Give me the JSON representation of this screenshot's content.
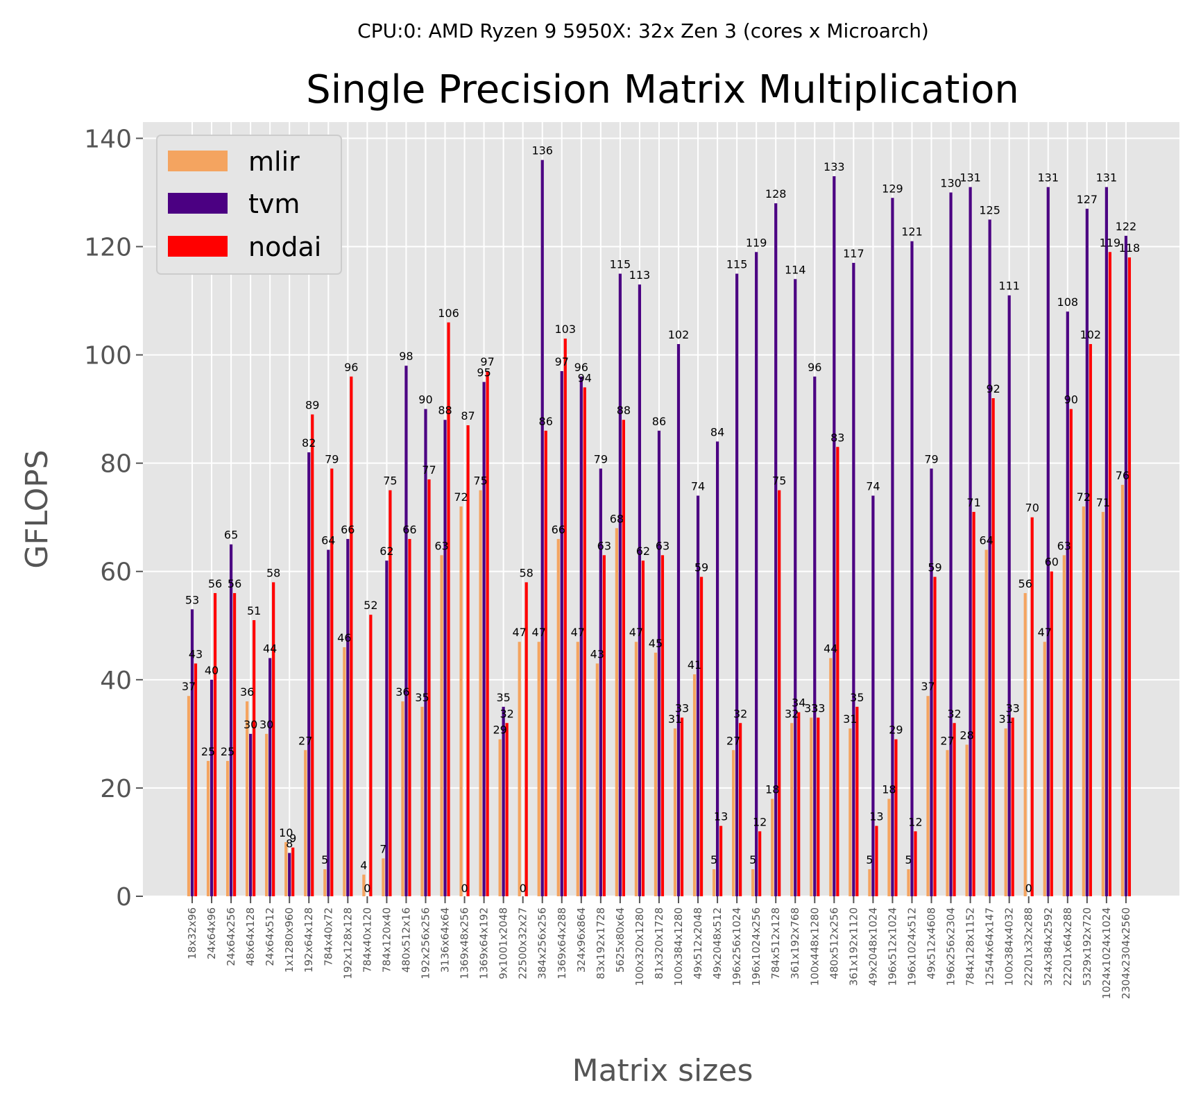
{
  "suptitle": "CPU:0: AMD Ryzen 9 5950X: 32x Zen 3 (cores x Microarch)",
  "chart_data": {
    "type": "bar",
    "title": "Single Precision Matrix Multiplication",
    "xlabel": "Matrix sizes",
    "ylabel": "GFLOPS",
    "ylim": [
      0,
      143
    ],
    "yticks": [
      0,
      20,
      40,
      60,
      80,
      100,
      120,
      140
    ],
    "grid": true,
    "legend_position": "top-left",
    "categories": [
      "18x32x96",
      "24x64x96",
      "24x64x256",
      "48x64x128",
      "24x64x512",
      "1x1280x960",
      "192x64x128",
      "784x40x72",
      "192x128x128",
      "784x40x120",
      "784x120x40",
      "480x512x16",
      "192x256x256",
      "3136x64x64",
      "1369x48x256",
      "1369x64x192",
      "9x1001x2048",
      "22500x32x27",
      "384x256x256",
      "1369x64x288",
      "324x96x864",
      "83x192x1728",
      "5625x80x64",
      "100x320x1280",
      "81x320x1728",
      "100x384x1280",
      "49x512x2048",
      "49x2048x512",
      "196x256x1024",
      "196x1024x256",
      "784x512x128",
      "361x192x768",
      "100x448x1280",
      "480x512x256",
      "361x192x1120",
      "49x2048x1024",
      "196x512x1024",
      "196x1024x512",
      "49x512x4608",
      "196x256x2304",
      "784x128x1152",
      "12544x64x147",
      "100x384x4032",
      "22201x32x288",
      "324x384x2592",
      "22201x64x288",
      "5329x192x720",
      "1024x1024x1024",
      "2304x2304x2560"
    ],
    "series": [
      {
        "name": "mlir",
        "color": "#F4A460",
        "values": [
          37,
          25,
          25,
          36,
          30,
          10,
          27,
          5,
          46,
          4,
          7,
          36,
          35,
          63,
          72,
          75,
          29,
          47,
          47,
          66,
          47,
          43,
          68,
          47,
          45,
          31,
          41,
          5,
          27,
          5,
          18,
          32,
          33,
          44,
          31,
          5,
          18,
          5,
          37,
          27,
          28,
          64,
          31,
          56,
          47,
          63,
          72,
          71,
          76
        ]
      },
      {
        "name": "tvm",
        "color": "#4B0082",
        "values": [
          53,
          40,
          65,
          30,
          44,
          8,
          82,
          64,
          66,
          0,
          62,
          98,
          90,
          88,
          0,
          95,
          35,
          0,
          136,
          97,
          96,
          79,
          115,
          113,
          86,
          102,
          74,
          84,
          115,
          119,
          128,
          114,
          96,
          133,
          117,
          74,
          129,
          121,
          79,
          130,
          131,
          125,
          111,
          0,
          131,
          108,
          127,
          131,
          122
        ]
      },
      {
        "name": "nodai",
        "color": "#FF0000",
        "values": [
          43,
          56,
          56,
          51,
          58,
          9,
          89,
          79,
          96,
          52,
          75,
          66,
          77,
          106,
          87,
          97,
          32,
          58,
          86,
          103,
          94,
          63,
          88,
          62,
          63,
          33,
          59,
          13,
          32,
          12,
          75,
          34,
          33,
          83,
          35,
          13,
          29,
          12,
          59,
          32,
          71,
          92,
          33,
          70,
          60,
          90,
          102,
          119,
          118
        ]
      }
    ],
    "bar_labels": [
      [
        "37",
        "25",
        "25",
        "36",
        "30",
        "10",
        "27",
        "5",
        "46",
        "4",
        "7",
        "36",
        "35",
        "63",
        "72",
        "75",
        "29",
        "47",
        "47",
        "66",
        "47",
        "43",
        "68",
        "47",
        "45",
        "31",
        "41",
        "5",
        "27",
        "5",
        "18",
        "32",
        "33",
        "44",
        "31",
        "5",
        "18",
        "5",
        "37",
        "27",
        "28",
        "64",
        "31",
        "56",
        "47",
        "63",
        "72",
        "71",
        "76"
      ],
      [
        "53",
        "40",
        "65",
        "30",
        "44",
        "8",
        "82",
        "64",
        "66",
        "",
        "62",
        "98",
        "90",
        "88",
        "",
        "95",
        "35",
        "",
        "136",
        "97",
        "96",
        "79",
        "115",
        "113",
        "86",
        "102",
        "74",
        "84",
        "115",
        "119",
        "128",
        "114",
        "96",
        "133",
        "117",
        "74",
        "129",
        "121",
        "79",
        "130",
        "131",
        "125",
        "111",
        "",
        "131",
        "108",
        "127",
        "131",
        "122"
      ],
      [
        "43",
        "56",
        "56",
        "51",
        "58",
        "9",
        "89",
        "79",
        "96",
        "52",
        "75",
        "66",
        "77",
        "106",
        "87",
        "97",
        "32",
        "58",
        "86",
        "103",
        "94",
        "63",
        "88",
        "62",
        "63",
        "33",
        "59",
        "13",
        "32",
        "12",
        "75",
        "34",
        "33",
        "83",
        "35",
        "13",
        "29",
        "12",
        "59",
        "32",
        "71",
        "92",
        "33",
        "70",
        "60",
        "90",
        "102",
        "119",
        "118"
      ]
    ],
    "zero_labels": [
      {
        "category": "784x40x120",
        "text": "0"
      },
      {
        "category": "1369x48x256",
        "text": "0"
      },
      {
        "category": "22500x32x27",
        "text": "0"
      },
      {
        "category": "22201x32x288",
        "text": "0"
      }
    ]
  }
}
